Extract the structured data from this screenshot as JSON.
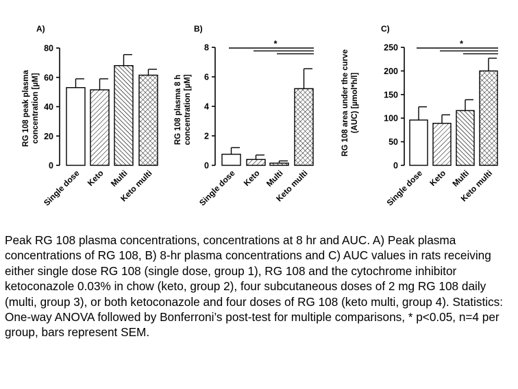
{
  "chart_data": [
    {
      "type": "bar",
      "panel_label": "A)",
      "title": "",
      "xlabel": "",
      "ylabel": "RG 108 peak plasma concentration [µM]",
      "ylim": [
        0,
        80
      ],
      "yticks": [
        "0",
        "20",
        "40",
        "60",
        "80"
      ],
      "categories": [
        "Single dose",
        "Keto",
        "Multi",
        "Keto multi"
      ],
      "values": [
        53,
        51.5,
        68,
        61.5
      ],
      "errors": [
        6,
        7.5,
        7.5,
        4
      ],
      "patterns": [
        "none",
        "diagonal",
        "diagonal-dense",
        "crosshatch"
      ],
      "significance_brackets": []
    },
    {
      "type": "bar",
      "panel_label": "B)",
      "title": "",
      "xlabel": "",
      "ylabel": "RG 108 plasma 8 h concentration [µM]",
      "ylim": [
        0,
        8
      ],
      "yticks": [
        "0",
        "2",
        "4",
        "6",
        "8"
      ],
      "categories": [
        "Single dose",
        "Keto",
        "Multi",
        "Keto multi"
      ],
      "values": [
        0.75,
        0.4,
        0.15,
        5.2
      ],
      "errors": [
        0.45,
        0.3,
        0.15,
        1.35
      ],
      "patterns": [
        "none",
        "diagonal",
        "diagonal-dense",
        "crosshatch"
      ],
      "significance_brackets": [
        {
          "from": 0,
          "to": 3,
          "label": "*"
        },
        {
          "from": 1,
          "to": 3,
          "label": ""
        },
        {
          "from": 2,
          "to": 3,
          "label": ""
        }
      ]
    },
    {
      "type": "bar",
      "panel_label": "C)",
      "title": "",
      "xlabel": "",
      "ylabel": "RG 108 area under the curve (AUC) [µmol*h/l]",
      "ylim": [
        0,
        250
      ],
      "yticks": [
        "0",
        "50",
        "100",
        "150",
        "200",
        "250"
      ],
      "categories": [
        "Single dose",
        "Keto",
        "Multi",
        "Keto multi"
      ],
      "values": [
        96,
        89,
        116,
        200
      ],
      "errors": [
        28,
        18,
        23,
        27
      ],
      "patterns": [
        "none",
        "diagonal",
        "diagonal-dense",
        "crosshatch"
      ],
      "significance_brackets": [
        {
          "from": 0,
          "to": 3,
          "label": "*"
        },
        {
          "from": 1,
          "to": 3,
          "label": ""
        },
        {
          "from": 2,
          "to": 3,
          "label": ""
        }
      ]
    }
  ],
  "caption": "Peak RG 108 plasma concentrations, concentrations at 8 hr and AUC. A) Peak plasma concentrations of RG 108, B) 8-hr plasma concentrations and C) AUC values in rats receiving either single dose RG 108 (single dose, group 1), RG 108 and the cytochrome inhibitor ketoconazole 0.03% in chow (keto, group 2), four subcutaneous doses of 2 mg RG 108 daily (multi, group 3), or both ketoconazole and four doses of RG 108 (keto multi, group 4). Statistics: One-way ANOVA followed by Bonferroni’s post-test for multiple comparisons, * p<0.05, n=4 per group, bars represent SEM.",
  "colors": {
    "bar_fill": "#ffffff",
    "stroke": "#000000",
    "text": "#000000"
  }
}
